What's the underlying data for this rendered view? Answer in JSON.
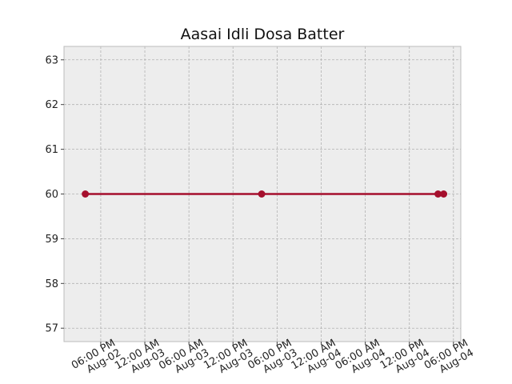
{
  "chart_data": {
    "type": "line",
    "title": "Aasai Idli Dosa Batter",
    "xlabel": "",
    "ylabel": "",
    "x_type": "datetime",
    "xlim": [
      "2022-08-02T13:00:00",
      "2022-08-04T19:00:00"
    ],
    "ylim": [
      56.7,
      63.3
    ],
    "yticks": [
      57,
      58,
      59,
      60,
      61,
      62,
      63
    ],
    "xticks": [
      {
        "value": "2022-08-02T18:00:00",
        "line1": "06:00 PM",
        "line2": "Aug-02"
      },
      {
        "value": "2022-08-03T00:00:00",
        "line1": "12:00 AM",
        "line2": "Aug-03"
      },
      {
        "value": "2022-08-03T06:00:00",
        "line1": "06:00 AM",
        "line2": "Aug-03"
      },
      {
        "value": "2022-08-03T12:00:00",
        "line1": "12:00 PM",
        "line2": "Aug-03"
      },
      {
        "value": "2022-08-03T18:00:00",
        "line1": "06:00 PM",
        "line2": "Aug-03"
      },
      {
        "value": "2022-08-04T00:00:00",
        "line1": "12:00 AM",
        "line2": "Aug-04"
      },
      {
        "value": "2022-08-04T06:00:00",
        "line1": "06:00 AM",
        "line2": "Aug-04"
      },
      {
        "value": "2022-08-04T12:00:00",
        "line1": "12:00 PM",
        "line2": "Aug-04"
      },
      {
        "value": "2022-08-04T18:00:00",
        "line1": "06:00 PM",
        "line2": "Aug-04"
      }
    ],
    "grid": true,
    "series": [
      {
        "color": "#a50f2d",
        "x": [
          "2022-08-02T15:54:00",
          "2022-08-03T15:54:00",
          "2022-08-04T15:54:00",
          "2022-08-04T16:40:00"
        ],
        "y": [
          60,
          60,
          60,
          60
        ]
      }
    ]
  }
}
